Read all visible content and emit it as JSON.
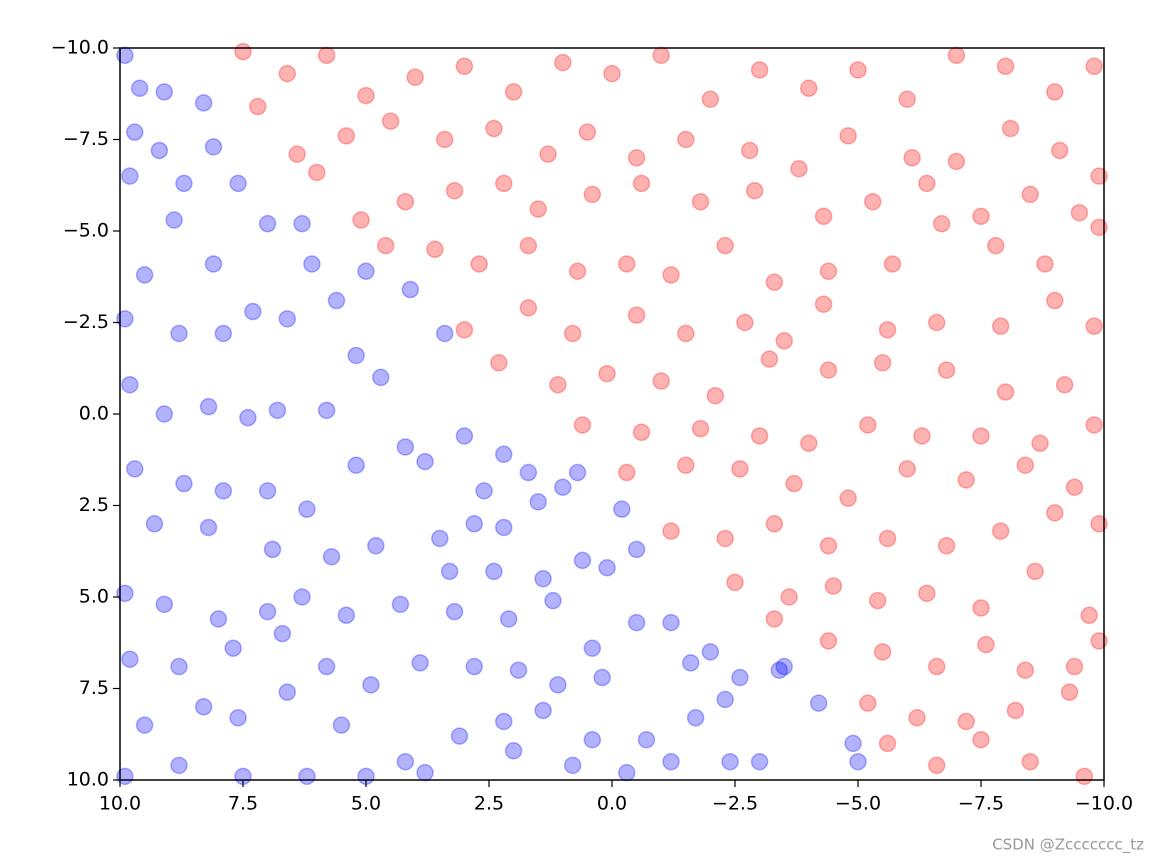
{
  "chart_data": {
    "type": "scatter",
    "xlim": [
      10,
      -10
    ],
    "ylim": [
      10,
      -10
    ],
    "xticks": [
      {
        "value": 10,
        "label": "10.0"
      },
      7.5,
      {
        "value": 5,
        "label": "5.0"
      },
      2.5,
      {
        "value": 0,
        "label": "0.0"
      },
      {
        "value": -2.5,
        "label": "−2.5"
      },
      {
        "value": -5,
        "label": "−5.0"
      },
      {
        "value": -7.5,
        "label": "−7.5"
      },
      {
        "value": -10,
        "label": "−10.0"
      }
    ],
    "yticks": [
      {
        "value": -10,
        "label": "−10.0"
      },
      {
        "value": -7.5,
        "label": "−7.5"
      },
      {
        "value": -5,
        "label": "−5.0"
      },
      {
        "value": -2.5,
        "label": "−2.5"
      },
      {
        "value": 0,
        "label": "0.0"
      },
      2.5,
      {
        "value": 5,
        "label": "5.0"
      },
      7.5,
      {
        "value": 10,
        "label": "10.0"
      }
    ],
    "grid": false,
    "alpha": 0.3,
    "series": [
      {
        "color": "#0000ff",
        "x": [
          9.9,
          9.6,
          9.1,
          8.3,
          9.7,
          9.2,
          8.1,
          9.8,
          8.7,
          7.6,
          9.5,
          8.9,
          8.1,
          7.0,
          6.3,
          6.1,
          9.9,
          8.8,
          7.9,
          7.3,
          6.6,
          5.6,
          5.0,
          4.1,
          9.8,
          9.1,
          8.2,
          7.4,
          6.8,
          5.8,
          5.2,
          4.7,
          3.4,
          9.7,
          8.7,
          7.9,
          7.0,
          6.2,
          5.2,
          4.2,
          3.8,
          3.0,
          2.2,
          2.6,
          1.7,
          1.0,
          0.7,
          9.3,
          8.2,
          6.9,
          5.7,
          4.8,
          3.5,
          2.8,
          2.2,
          1.5,
          3.3,
          2.4,
          1.4,
          0.6,
          0.1,
          -0.2,
          -0.5,
          9.9,
          9.1,
          8.0,
          7.0,
          6.3,
          5.4,
          4.3,
          3.2,
          2.1,
          1.2,
          0.4,
          -0.5,
          -1.2,
          9.8,
          8.8,
          7.7,
          6.7,
          5.8,
          4.9,
          3.9,
          2.8,
          1.9,
          1.1,
          0.2,
          -1.6,
          -2.0,
          -2.6,
          -3.4,
          9.5,
          8.3,
          7.6,
          6.6,
          5.5,
          4.2,
          3.1,
          2.2,
          1.4,
          0.4,
          -0.7,
          -1.7,
          -2.3,
          -3.0,
          -4.2,
          -4.9,
          -5.0,
          9.9,
          8.8,
          7.5,
          6.2,
          5.0,
          3.8,
          2.0,
          0.8,
          -0.3,
          -1.2,
          -2.4,
          -3.5
        ],
        "values": [
          -9.8,
          -8.9,
          -8.8,
          -8.5,
          -7.7,
          -7.2,
          -7.3,
          -6.5,
          -6.3,
          -6.3,
          -3.8,
          -5.3,
          -4.1,
          -5.2,
          -5.2,
          -4.1,
          -2.6,
          -2.2,
          -2.2,
          -2.8,
          -2.6,
          -3.1,
          -3.9,
          -3.4,
          -0.8,
          0.0,
          -0.2,
          0.1,
          -0.1,
          -0.1,
          -1.6,
          -1.0,
          -2.2,
          1.5,
          1.9,
          2.1,
          2.1,
          2.6,
          1.4,
          0.9,
          1.3,
          0.6,
          1.1,
          2.1,
          1.6,
          2.0,
          1.6,
          3.0,
          3.1,
          3.7,
          3.9,
          3.6,
          3.4,
          3.0,
          3.1,
          2.4,
          4.3,
          4.3,
          4.5,
          4.0,
          4.2,
          2.6,
          3.7,
          4.9,
          5.2,
          5.6,
          5.4,
          5.0,
          5.5,
          5.2,
          5.4,
          5.6,
          5.1,
          6.4,
          5.7,
          5.7,
          6.7,
          6.9,
          6.4,
          6.0,
          6.9,
          7.4,
          6.8,
          6.9,
          7.0,
          7.4,
          7.2,
          6.8,
          6.5,
          7.2,
          7.0,
          8.5,
          8.0,
          8.3,
          7.6,
          8.5,
          9.5,
          8.8,
          8.4,
          8.1,
          8.9,
          8.9,
          8.3,
          7.8,
          9.5,
          7.9,
          9.0,
          9.5,
          9.9,
          9.6,
          9.9,
          9.9,
          9.9,
          9.8,
          9.2,
          9.6,
          9.8,
          9.5,
          9.5,
          6.9
        ]
      },
      {
        "color": "#ff0000",
        "x": [
          7.5,
          6.6,
          5.8,
          5.0,
          4.0,
          3.0,
          2.0,
          1.0,
          0.0,
          -1.0,
          -2.0,
          -3.0,
          -4.0,
          -5.0,
          -6.0,
          -7.0,
          -8.0,
          -9.0,
          -9.8,
          7.2,
          6.4,
          5.4,
          4.5,
          3.4,
          2.4,
          1.3,
          0.5,
          -0.5,
          -1.5,
          -2.8,
          -3.8,
          -4.8,
          -6.1,
          -7.0,
          -8.1,
          -9.1,
          -9.9,
          6.0,
          5.1,
          4.2,
          3.2,
          2.2,
          1.5,
          0.4,
          -0.6,
          -1.8,
          -2.9,
          -4.3,
          -5.3,
          -6.4,
          -7.5,
          -8.5,
          -9.5,
          4.6,
          3.6,
          2.7,
          1.7,
          0.7,
          -0.3,
          -1.2,
          -2.3,
          -3.3,
          -4.4,
          -5.7,
          -6.7,
          -7.8,
          -8.8,
          -9.9,
          3.0,
          1.7,
          0.8,
          -0.5,
          -1.5,
          -2.7,
          -3.5,
          -4.3,
          -5.6,
          -6.6,
          -7.9,
          -9.0,
          -9.8,
          2.3,
          1.1,
          0.1,
          -1.0,
          -2.1,
          -3.2,
          -4.4,
          -5.5,
          -6.8,
          -8.0,
          -9.2,
          0.6,
          -0.6,
          -1.8,
          -3.0,
          -4.0,
          -5.2,
          -6.3,
          -7.5,
          -8.7,
          -9.8,
          -0.3,
          -1.5,
          -2.6,
          -3.7,
          -4.8,
          -6.0,
          -7.2,
          -8.4,
          -9.4,
          -1.2,
          -2.3,
          -3.3,
          -4.4,
          -5.6,
          -6.8,
          -7.9,
          -9.0,
          -9.9,
          -2.5,
          -3.6,
          -4.5,
          -5.4,
          -6.4,
          -7.5,
          -8.6,
          -9.7,
          -3.3,
          -4.4,
          -5.5,
          -6.6,
          -7.6,
          -8.4,
          -9.4,
          -9.9,
          -5.2,
          -6.2,
          -7.2,
          -8.2,
          -9.3,
          -5.6,
          -6.6,
          -7.5,
          -8.5,
          -9.6
        ],
        "values": [
          -9.9,
          -9.3,
          -9.8,
          -8.7,
          -9.2,
          -9.5,
          -8.8,
          -9.6,
          -9.3,
          -9.8,
          -8.6,
          -9.4,
          -8.9,
          -9.4,
          -8.6,
          -9.8,
          -9.5,
          -8.8,
          -9.5,
          -8.4,
          -7.1,
          -7.6,
          -8.0,
          -7.5,
          -7.8,
          -7.1,
          -7.7,
          -7.0,
          -7.5,
          -7.2,
          -6.7,
          -7.6,
          -7.0,
          -6.9,
          -7.8,
          -7.2,
          -6.5,
          -6.6,
          -5.3,
          -5.8,
          -6.1,
          -6.3,
          -5.6,
          -6.0,
          -6.3,
          -5.8,
          -6.1,
          -5.4,
          -5.8,
          -6.3,
          -5.4,
          -6.0,
          -5.5,
          -4.6,
          -4.5,
          -4.1,
          -4.6,
          -3.9,
          -4.1,
          -3.8,
          -4.6,
          -3.6,
          -3.9,
          -4.1,
          -5.2,
          -4.6,
          -4.1,
          -5.1,
          -2.3,
          -2.9,
          -2.2,
          -2.7,
          -2.2,
          -2.5,
          -2.0,
          -3.0,
          -2.3,
          -2.5,
          -2.4,
          -3.1,
          -2.4,
          -1.4,
          -0.8,
          -1.1,
          -0.9,
          -0.5,
          -1.5,
          -1.2,
          -1.4,
          -1.2,
          -0.6,
          -0.8,
          0.3,
          0.5,
          0.4,
          0.6,
          0.8,
          0.3,
          0.6,
          0.6,
          0.8,
          0.3,
          1.6,
          1.4,
          1.5,
          1.9,
          2.3,
          1.5,
          1.8,
          1.4,
          2.0,
          3.2,
          3.4,
          3.0,
          3.6,
          3.4,
          3.6,
          3.2,
          2.7,
          3.0,
          4.6,
          5.0,
          4.7,
          5.1,
          4.9,
          5.3,
          4.3,
          5.5,
          5.6,
          6.2,
          6.5,
          6.9,
          6.3,
          7.0,
          6.9,
          6.2,
          7.9,
          8.3,
          8.4,
          8.1,
          7.6,
          9.0,
          9.6,
          8.9,
          9.5,
          9.9
        ]
      }
    ],
    "watermark": "CSDN @Zccccccc_tz"
  }
}
